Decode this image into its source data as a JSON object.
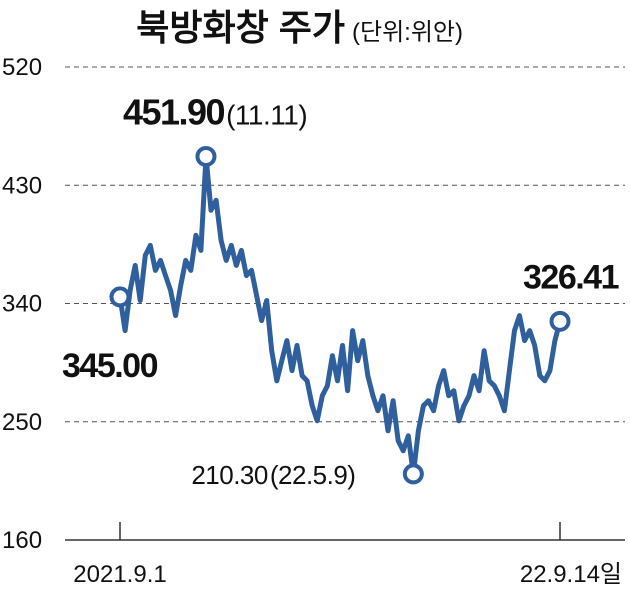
{
  "chart_data": {
    "type": "line",
    "title": "북방화창 주가",
    "subtitle": "(단위:위안)",
    "color": "#2f5f9c",
    "grid": true,
    "ylim": [
      160,
      520
    ],
    "yticks": [
      160,
      250,
      340,
      430,
      520
    ],
    "categories": [
      "2021.9.1",
      null,
      null,
      null,
      null,
      null,
      null,
      null,
      null,
      null,
      null,
      null,
      null,
      null,
      null,
      null,
      null,
      null,
      null,
      null,
      null,
      null,
      null,
      null,
      null,
      null,
      null,
      null,
      null,
      null,
      null,
      null,
      null,
      null,
      null,
      null,
      null,
      null,
      null,
      null,
      null,
      null,
      null,
      null,
      null,
      null,
      null,
      null,
      null,
      null,
      null,
      null,
      null,
      null,
      null,
      null,
      null,
      null,
      null,
      null,
      null,
      null,
      null,
      null,
      null,
      null,
      null,
      null,
      null,
      null,
      null,
      null,
      null,
      null,
      null,
      null,
      null,
      null,
      null,
      null,
      null,
      null,
      null,
      null,
      null,
      null,
      null,
      "22.9.14일"
    ],
    "values": [
      345,
      319.4,
      349.9,
      369,
      342.3,
      376.6,
      384.2,
      365.2,
      372.8,
      361.3,
      349.9,
      330.8,
      353.7,
      372.8,
      365.2,
      391.9,
      380.4,
      451.9,
      410.9,
      418.6,
      388,
      372.8,
      384.2,
      369,
      380.4,
      361.3,
      365.2,
      346.1,
      327,
      342.3,
      304.1,
      281.2,
      296.5,
      311.8,
      288.9,
      308,
      285.1,
      281.2,
      262.2,
      250.7,
      269.8,
      277.4,
      300.3,
      281.2,
      308,
      273.6,
      319.4,
      296.5,
      311.8,
      285.1,
      269.8,
      258.4,
      269.8,
      243.1,
      266,
      235.5,
      227.9,
      239.3,
      210.3,
      243.1,
      262.2,
      266,
      258.4,
      277.4,
      288.9,
      269.8,
      273.6,
      250.7,
      262.2,
      269.8,
      285.1,
      273.6,
      304.1,
      281.2,
      277.4,
      269.8,
      258.4,
      288.9,
      319.4,
      330.8,
      311.8,
      319.4,
      308,
      285.1,
      281.2,
      288.9,
      311.8,
      326.41
    ],
    "value_labels": [
      "345.00",
      null,
      null,
      null,
      null,
      null,
      null,
      null,
      null,
      null,
      null,
      null,
      null,
      null,
      null,
      null,
      null,
      "451.90",
      null,
      null,
      null,
      null,
      null,
      null,
      null,
      null,
      null,
      null,
      null,
      null,
      null,
      null,
      null,
      null,
      null,
      null,
      null,
      null,
      null,
      null,
      null,
      null,
      null,
      null,
      null,
      null,
      null,
      null,
      null,
      null,
      null,
      null,
      null,
      null,
      null,
      null,
      null,
      null,
      "210.30",
      null,
      null,
      null,
      null,
      null,
      null,
      null,
      null,
      null,
      null,
      null,
      null,
      null,
      null,
      null,
      null,
      null,
      null,
      null,
      null,
      null,
      null,
      null,
      null,
      null,
      null,
      null,
      null,
      "326.41"
    ],
    "annotations": [
      "(11.11)",
      "(22.5.9)"
    ]
  }
}
